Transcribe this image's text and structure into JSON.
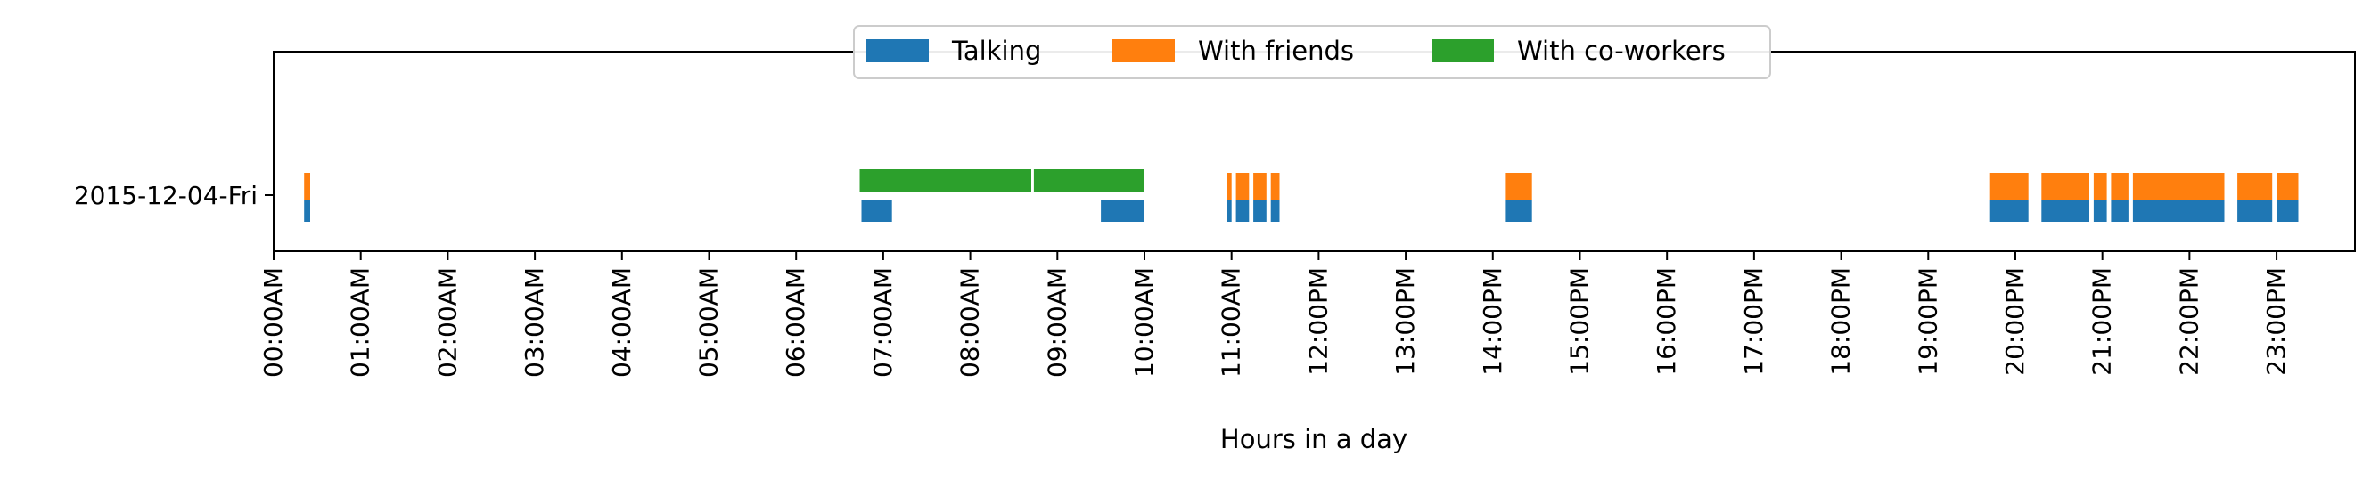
{
  "chart_data": {
    "type": "timeline",
    "title": "",
    "xlabel": "Hours in a day",
    "ylabel": "",
    "xlim": [
      0,
      23.9
    ],
    "x_unit": "hours",
    "x_ticks": [
      {
        "value": 0,
        "label": "00:00AM"
      },
      {
        "value": 1,
        "label": "01:00AM"
      },
      {
        "value": 2,
        "label": "02:00AM"
      },
      {
        "value": 3,
        "label": "03:00AM"
      },
      {
        "value": 4,
        "label": "04:00AM"
      },
      {
        "value": 5,
        "label": "05:00AM"
      },
      {
        "value": 6,
        "label": "06:00AM"
      },
      {
        "value": 7,
        "label": "07:00AM"
      },
      {
        "value": 8,
        "label": "08:00AM"
      },
      {
        "value": 9,
        "label": "09:00AM"
      },
      {
        "value": 10,
        "label": "10:00AM"
      },
      {
        "value": 11,
        "label": "11:00AM"
      },
      {
        "value": 12,
        "label": "12:00PM"
      },
      {
        "value": 13,
        "label": "13:00PM"
      },
      {
        "value": 14,
        "label": "14:00PM"
      },
      {
        "value": 15,
        "label": "15:00PM"
      },
      {
        "value": 16,
        "label": "16:00PM"
      },
      {
        "value": 17,
        "label": "17:00PM"
      },
      {
        "value": 18,
        "label": "18:00PM"
      },
      {
        "value": 19,
        "label": "19:00PM"
      },
      {
        "value": 20,
        "label": "20:00PM"
      },
      {
        "value": 21,
        "label": "21:00PM"
      },
      {
        "value": 22,
        "label": "22:00PM"
      },
      {
        "value": 23,
        "label": "23:00PM"
      }
    ],
    "rows": [
      {
        "label": "2015-12-04-Fri"
      }
    ],
    "legend_position": "top-center",
    "grid": false,
    "series": [
      {
        "name": "Talking",
        "color": "#1f77b4",
        "segments": [
          [
            0.35,
            0.42
          ],
          [
            6.75,
            7.1
          ],
          [
            9.5,
            10.0
          ],
          [
            10.95,
            11.0
          ],
          [
            11.05,
            11.2
          ],
          [
            11.25,
            11.4
          ],
          [
            11.45,
            11.55
          ],
          [
            14.15,
            14.45
          ],
          [
            19.7,
            20.15
          ],
          [
            20.3,
            20.85
          ],
          [
            20.9,
            21.05
          ],
          [
            21.1,
            21.3
          ],
          [
            21.35,
            22.4
          ],
          [
            22.55,
            22.95
          ],
          [
            23.0,
            23.25
          ]
        ]
      },
      {
        "name": "With friends",
        "color": "#ff7f0e",
        "segments": [
          [
            0.35,
            0.42
          ],
          [
            10.95,
            11.0
          ],
          [
            11.05,
            11.2
          ],
          [
            11.25,
            11.4
          ],
          [
            11.45,
            11.55
          ],
          [
            14.15,
            14.45
          ],
          [
            19.7,
            20.15
          ],
          [
            20.3,
            20.85
          ],
          [
            20.9,
            21.05
          ],
          [
            21.1,
            21.3
          ],
          [
            21.35,
            22.4
          ],
          [
            22.55,
            22.95
          ],
          [
            23.0,
            23.25
          ]
        ]
      },
      {
        "name": "With co-workers",
        "color": "#2ca02c",
        "segments": [
          [
            6.73,
            8.7
          ],
          [
            8.73,
            10.0
          ]
        ]
      }
    ]
  }
}
